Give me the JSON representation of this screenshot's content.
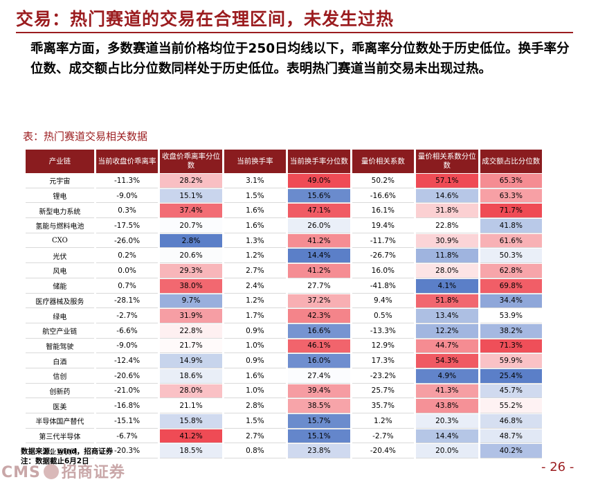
{
  "title": "交易：热门赛道的交易在合理区间，未发生过热",
  "paragraph": "乖离率方面，多数赛道当前价格均位于250日均线以下，乖离率分位数处于历史低位。换手率分位数、成交额占比分位数同样处于历史低位。表明热门赛道当前交易未出现过热。",
  "table_caption": "表：热门赛道交易相关数据",
  "headers": [
    "产业链",
    "当前收盘价乖离率",
    "收盘价乖离率分位数",
    "当前换手率",
    "当前换手率分位数",
    "量价相关系数",
    "量价相关系数分位数",
    "成交额占比分位数"
  ],
  "rows": [
    [
      "元宇宙",
      "-11.3%",
      "28.2%",
      "3.1%",
      "49.0%",
      "50.2%",
      "57.1%",
      "65.3%"
    ],
    [
      "锂电",
      "-9.0%",
      "15.1%",
      "1.5%",
      "15.6%",
      "-16.6%",
      "14.6%",
      "63.3%"
    ],
    [
      "新型电力系统",
      "0.3%",
      "37.4%",
      "1.6%",
      "47.1%",
      "16.1%",
      "31.8%",
      "71.7%"
    ],
    [
      "氢能与燃料电池",
      "-17.5%",
      "20.7%",
      "1.6%",
      "26.0%",
      "19.4%",
      "22.8%",
      "41.8%"
    ],
    [
      "CXO",
      "-26.0%",
      "2.8%",
      "1.3%",
      "41.2%",
      "-11.7%",
      "30.9%",
      "61.6%"
    ],
    [
      "光伏",
      "0.2%",
      "20.6%",
      "1.2%",
      "14.4%",
      "-26.7%",
      "11.8%",
      "50.3%"
    ],
    [
      "风电",
      "0.0%",
      "29.3%",
      "2.7%",
      "41.2%",
      "16.0%",
      "28.0%",
      "62.8%"
    ],
    [
      "储能",
      "0.7%",
      "38.0%",
      "2.4%",
      "27.7%",
      "-41.8%",
      "4.1%",
      "69.8%"
    ],
    [
      "医疗器械及服务",
      "-28.1%",
      "9.7%",
      "1.2%",
      "37.2%",
      "9.4%",
      "51.8%",
      "34.4%"
    ],
    [
      "绿电",
      "-2.7%",
      "31.9%",
      "1.7%",
      "42.3%",
      "0.5%",
      "13.4%",
      "53.9%"
    ],
    [
      "航空产业链",
      "-6.6%",
      "22.8%",
      "0.9%",
      "16.6%",
      "-13.3%",
      "12.2%",
      "38.2%"
    ],
    [
      "智能驾驶",
      "-9.0%",
      "21.7%",
      "1.0%",
      "46.1%",
      "12.9%",
      "44.7%",
      "71.3%"
    ],
    [
      "白酒",
      "-12.4%",
      "14.9%",
      "0.9%",
      "16.0%",
      "17.3%",
      "54.3%",
      "59.9%"
    ],
    [
      "信创",
      "-20.6%",
      "18.6%",
      "1.6%",
      "27.4%",
      "-23.2%",
      "4.9%",
      "25.4%"
    ],
    [
      "创新药",
      "-21.0%",
      "28.0%",
      "1.0%",
      "39.4%",
      "25.7%",
      "41.3%",
      "45.7%"
    ],
    [
      "医美",
      "-16.8%",
      "21.1%",
      "2.8%",
      "38.5%",
      "35.7%",
      "43.8%",
      "55.2%"
    ],
    [
      "半导体国产替代",
      "-15.1%",
      "15.8%",
      "1.5%",
      "15.7%",
      "1.2%",
      "20.3%",
      "46.8%"
    ],
    [
      "第三代半导体",
      "-6.7%",
      "41.2%",
      "2.7%",
      "15.1%",
      "-2.7%",
      "14.4%",
      "48.7%"
    ],
    [
      "工业互联网",
      "-20.3%",
      "18.5%",
      "0.8%",
      "23.8%",
      "-20.4%",
      "20.0%",
      "40.2%"
    ]
  ],
  "heat_columns": [
    2,
    4,
    6,
    7
  ],
  "heat_colors": {
    "low": "#5b7fc8",
    "mid": "#ffffff",
    "high": "#ef4b55"
  },
  "source_line": "数据来源：wind，招商证券",
  "note_line": "注：数据截止6月2日",
  "logo_latin": "CMS",
  "logo_cn": "招商证券",
  "page_number": "- 26 -"
}
